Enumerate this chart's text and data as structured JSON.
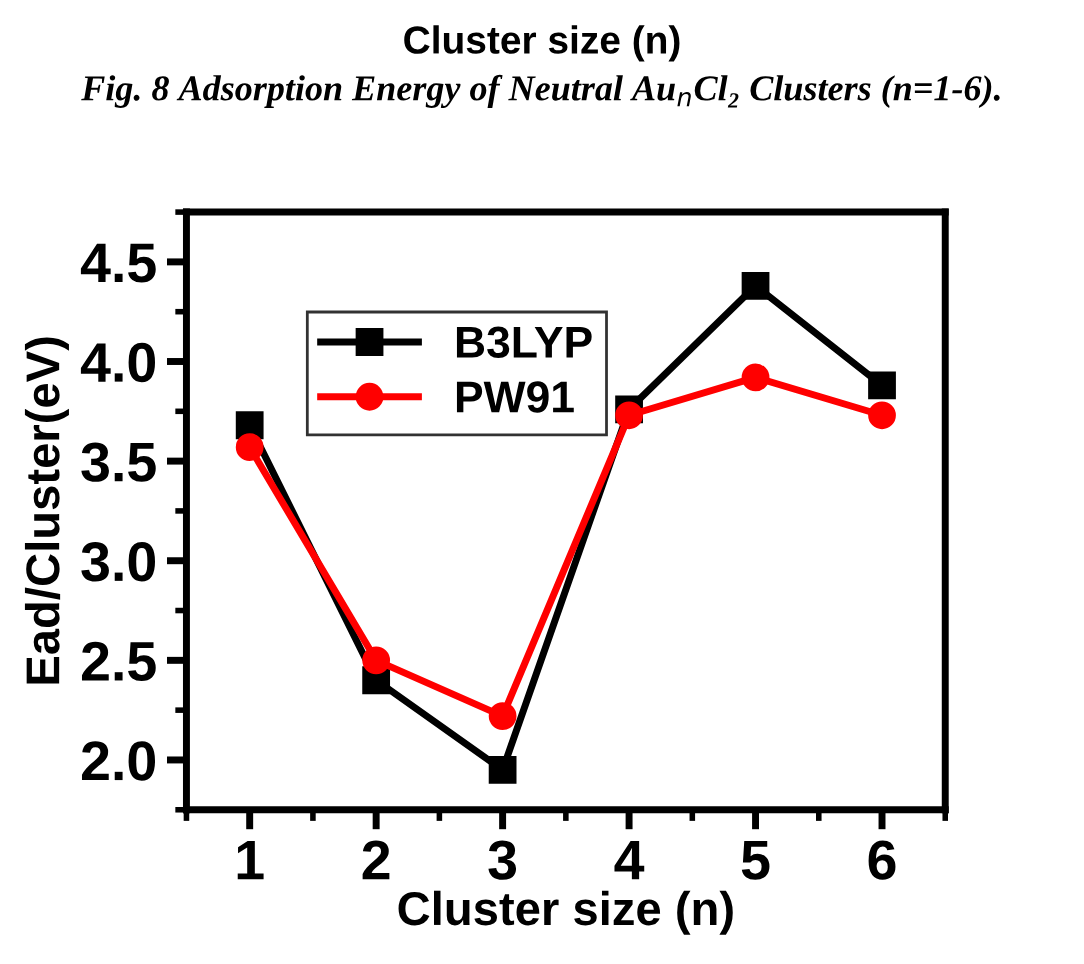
{
  "chart_data": {
    "type": "line",
    "xlabel": "Cluster size (n)",
    "ylabel": "Ead/Cluster(eV)",
    "annotations": [
      "Cluster size (n)",
      "Fig. 8 Adsorption Energy of Neutral Au$_{n}$Cl₂ Clusters (n=1-6)."
    ],
    "x": [
      1,
      2,
      3,
      4,
      5,
      6
    ],
    "series": [
      {
        "name": "B3LYP",
        "color": "#000000",
        "marker": "square",
        "values": [
          3.68,
          2.4,
          1.95,
          3.76,
          4.38,
          3.88
        ]
      },
      {
        "name": "PW91",
        "color": "#ff0000",
        "marker": "circle",
        "values": [
          3.57,
          2.5,
          2.22,
          3.73,
          3.92,
          3.73
        ]
      }
    ],
    "xlim": [
      0.5,
      6.5
    ],
    "xticks": [
      1,
      2,
      3,
      4,
      5,
      6
    ],
    "ylim": [
      1.75,
      4.75
    ],
    "yticks": [
      {
        "value": 2,
        "label": "2.0"
      },
      2.5,
      {
        "value": 3,
        "label": "3.0"
      },
      3.5,
      {
        "value": 4,
        "label": "4.0"
      },
      4.5
    ],
    "grid": false,
    "legend": "top left",
    "line_style": "solid"
  }
}
